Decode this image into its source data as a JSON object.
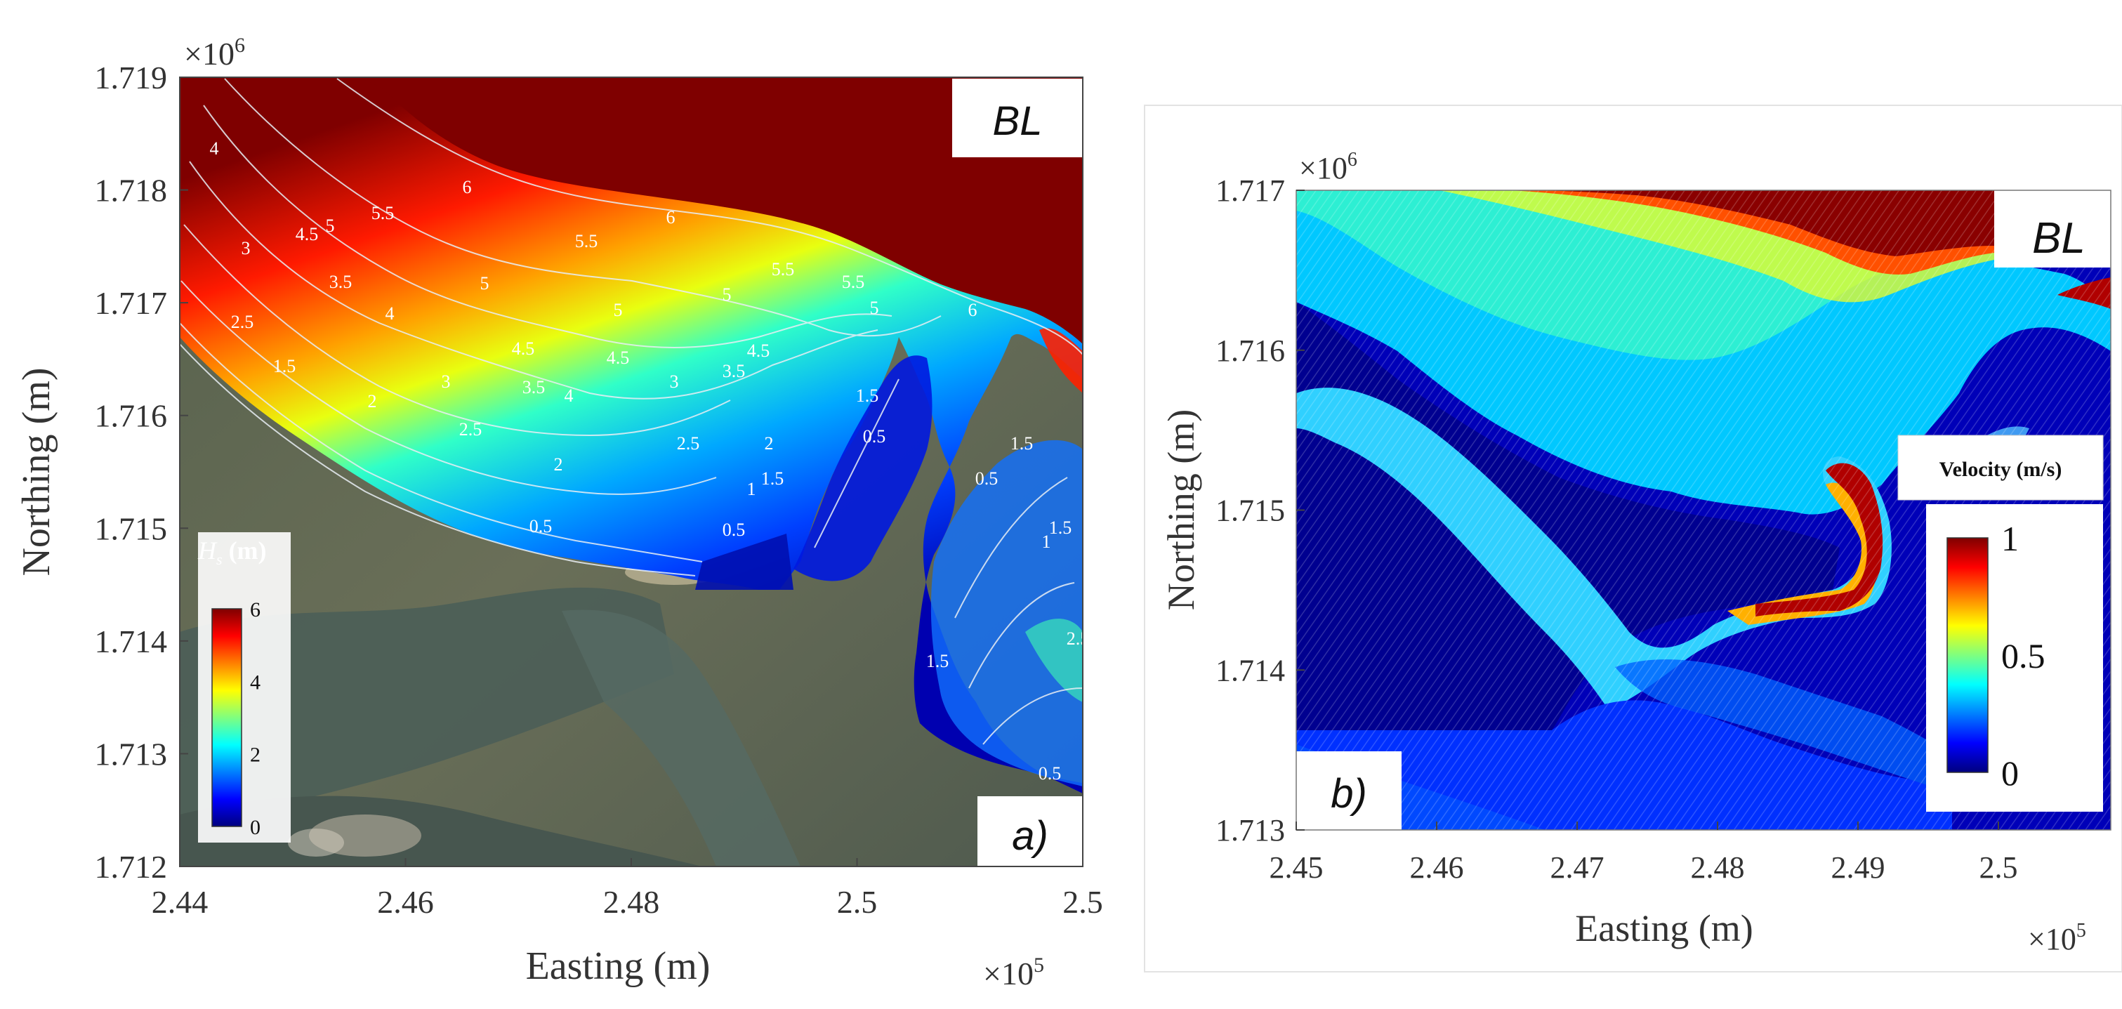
{
  "chart_data": [
    {
      "panel_label": "a)",
      "type": "heatmap",
      "corner_label": "BL",
      "variable": "Hs",
      "units": "(m)",
      "xlabel": "Easting (m)",
      "ylabel": "Northing (m)",
      "x_multiplier": "×10",
      "x_multiplier_exp": "5",
      "y_multiplier": "×10",
      "y_multiplier_exp": "6",
      "x_ticks": [
        "2.44",
        "2.46",
        "2.48",
        "2.5",
        "2.5"
      ],
      "y_ticks": [
        "1.719",
        "1.718",
        "1.717",
        "1.716",
        "1.715",
        "1.714",
        "1.713",
        "1.712"
      ],
      "colorbar": {
        "label": "(m)",
        "min": 0,
        "max": 6,
        "ticks": [
          "6",
          "4",
          "2",
          "0"
        ]
      },
      "contour_labels": [
        "6",
        "6",
        "6",
        "5.5",
        "5.5",
        "5.5",
        "5.5",
        "5",
        "5",
        "5",
        "5",
        "5",
        "4.5",
        "4.5",
        "4.5",
        "4.5",
        "4",
        "4",
        "4",
        "3.5",
        "3.5",
        "3.5",
        "3",
        "3",
        "3",
        "2.5",
        "2.5",
        "2.5",
        "2",
        "2",
        "2",
        "1.5",
        "1.5",
        "1.5",
        "1.5",
        "1",
        "1",
        "0.5",
        "0.5",
        "0.5",
        "0.5",
        "0.5",
        "1.5",
        "1.5",
        "2.5"
      ]
    },
    {
      "panel_label": "b)",
      "type": "heatmap",
      "corner_label": "BL",
      "variable": "Velocity (m/s)",
      "xlabel": "Easting (m)",
      "ylabel": "Northing (m)",
      "x_multiplier": "×10",
      "x_multiplier_exp": "5",
      "y_multiplier": "×10",
      "y_multiplier_exp": "6",
      "x_ticks": [
        "2.45",
        "2.46",
        "2.47",
        "2.48",
        "2.49",
        "2.5"
      ],
      "y_ticks": [
        "1.717",
        "1.716",
        "1.715",
        "1.714",
        "1.713"
      ],
      "colorbar": {
        "label": "Velocity (m/s)",
        "min": 0,
        "max": 1,
        "ticks": [
          "1",
          "0.5",
          "0"
        ]
      }
    }
  ],
  "colors": {
    "jet": [
      "#00007f",
      "#0000ff",
      "#007fff",
      "#00ffff",
      "#7fff7f",
      "#ffff00",
      "#ff7f00",
      "#ff0000",
      "#7f0000"
    ],
    "land": "#5d6652",
    "water": "#4a5a55",
    "contour": "#e8eef4"
  }
}
